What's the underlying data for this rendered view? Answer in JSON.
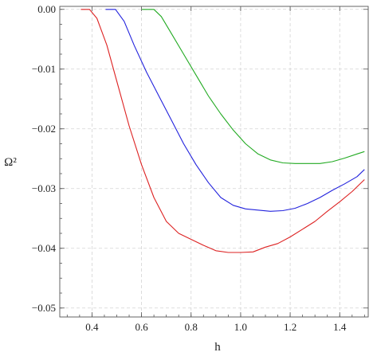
{
  "chart_data": {
    "type": "line",
    "xlabel": "h",
    "ylabel": "Ω²",
    "xlim": [
      0.27,
      1.515
    ],
    "ylim": [
      -0.0515,
      0.0005
    ],
    "x_ticks": [
      0.4,
      0.6,
      0.8,
      1.0,
      1.2,
      1.4
    ],
    "x_tick_labels": [
      "0.4",
      "0.6",
      "0.8",
      "1.0",
      "1.2",
      "1.4"
    ],
    "y_ticks": [
      0.0,
      -0.01,
      -0.02,
      -0.03,
      -0.04,
      -0.05
    ],
    "y_tick_labels": [
      "0.00",
      "−0.01",
      "−0.02",
      "−0.03",
      "−0.04",
      "−0.05"
    ],
    "grid": true,
    "series": [
      {
        "color": "#dd2222",
        "x": [
          0.355,
          0.39,
          0.42,
          0.46,
          0.5,
          0.55,
          0.6,
          0.65,
          0.7,
          0.75,
          0.8,
          0.85,
          0.9,
          0.95,
          1.0,
          1.05,
          1.1,
          1.15,
          1.2,
          1.25,
          1.3,
          1.35,
          1.4,
          1.45,
          1.5
        ],
        "y": [
          0.0,
          0.0,
          -0.0015,
          -0.006,
          -0.012,
          -0.0195,
          -0.026,
          -0.0315,
          -0.0355,
          -0.0375,
          -0.0385,
          -0.0395,
          -0.0404,
          -0.0407,
          -0.0407,
          -0.0406,
          -0.0398,
          -0.0392,
          -0.0381,
          -0.0368,
          -0.0355,
          -0.0338,
          -0.0322,
          -0.0305,
          -0.0285
        ]
      },
      {
        "color": "#2222dd",
        "x": [
          0.455,
          0.495,
          0.53,
          0.57,
          0.62,
          0.67,
          0.72,
          0.77,
          0.82,
          0.87,
          0.92,
          0.97,
          1.02,
          1.07,
          1.12,
          1.17,
          1.22,
          1.27,
          1.32,
          1.37,
          1.42,
          1.47,
          1.5
        ],
        "y": [
          0.0,
          0.0,
          -0.002,
          -0.006,
          -0.0105,
          -0.0145,
          -0.0185,
          -0.0225,
          -0.026,
          -0.029,
          -0.0315,
          -0.0328,
          -0.0334,
          -0.0336,
          -0.0338,
          -0.0337,
          -0.0333,
          -0.0325,
          -0.0315,
          -0.0303,
          -0.0292,
          -0.028,
          -0.0268
        ]
      },
      {
        "color": "#22aa22",
        "x": [
          0.6,
          0.65,
          0.68,
          0.72,
          0.77,
          0.82,
          0.87,
          0.92,
          0.97,
          1.02,
          1.07,
          1.12,
          1.17,
          1.22,
          1.27,
          1.32,
          1.37,
          1.42,
          1.47,
          1.5
        ],
        "y": [
          0.0,
          0.0,
          -0.0012,
          -0.004,
          -0.0075,
          -0.011,
          -0.0145,
          -0.0175,
          -0.0202,
          -0.0225,
          -0.0242,
          -0.0252,
          -0.0257,
          -0.0258,
          -0.0258,
          -0.0258,
          -0.0255,
          -0.0249,
          -0.0242,
          -0.0238
        ]
      }
    ]
  }
}
